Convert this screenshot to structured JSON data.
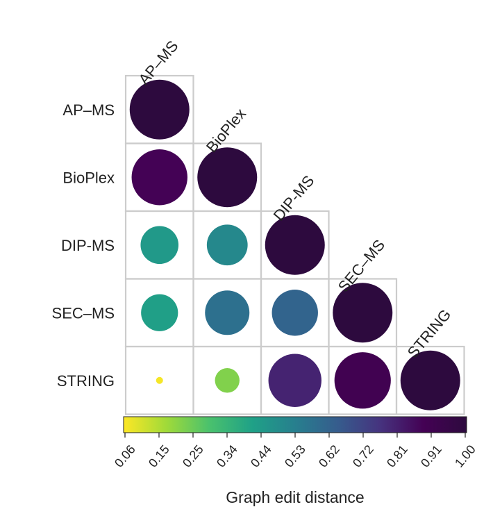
{
  "chart_data": {
    "type": "heatmap",
    "subtype": "lower-triangular correlogram (circle size and color encode value)",
    "labels": [
      "AP–MS",
      "BioPlex",
      "DIP-MS",
      "SEC–MS",
      "STRING"
    ],
    "matrix": [
      [
        1.0,
        null,
        null,
        null,
        null
      ],
      [
        0.88,
        1.0,
        null,
        null,
        null
      ],
      [
        0.44,
        0.5,
        1.0,
        null,
        null
      ],
      [
        0.42,
        0.58,
        0.62,
        1.0,
        null
      ],
      [
        0.07,
        0.22,
        0.8,
        0.9,
        1.0
      ]
    ],
    "colorbar": {
      "title": "Graph edit distance",
      "min": 0.06,
      "max": 1.0,
      "ticks": [
        "0.06",
        "0.15",
        "0.25",
        "0.34",
        "0.44",
        "0.53",
        "0.62",
        "0.72",
        "0.81",
        "0.91",
        "1.00"
      ],
      "colormap": "viridis",
      "stops": [
        "#fde725",
        "#a0da39",
        "#4ac16d",
        "#1fa187",
        "#277f8e",
        "#365c8d",
        "#46327e",
        "#440154",
        "#2d0a3e"
      ]
    },
    "grid_color": "#cccccc"
  }
}
